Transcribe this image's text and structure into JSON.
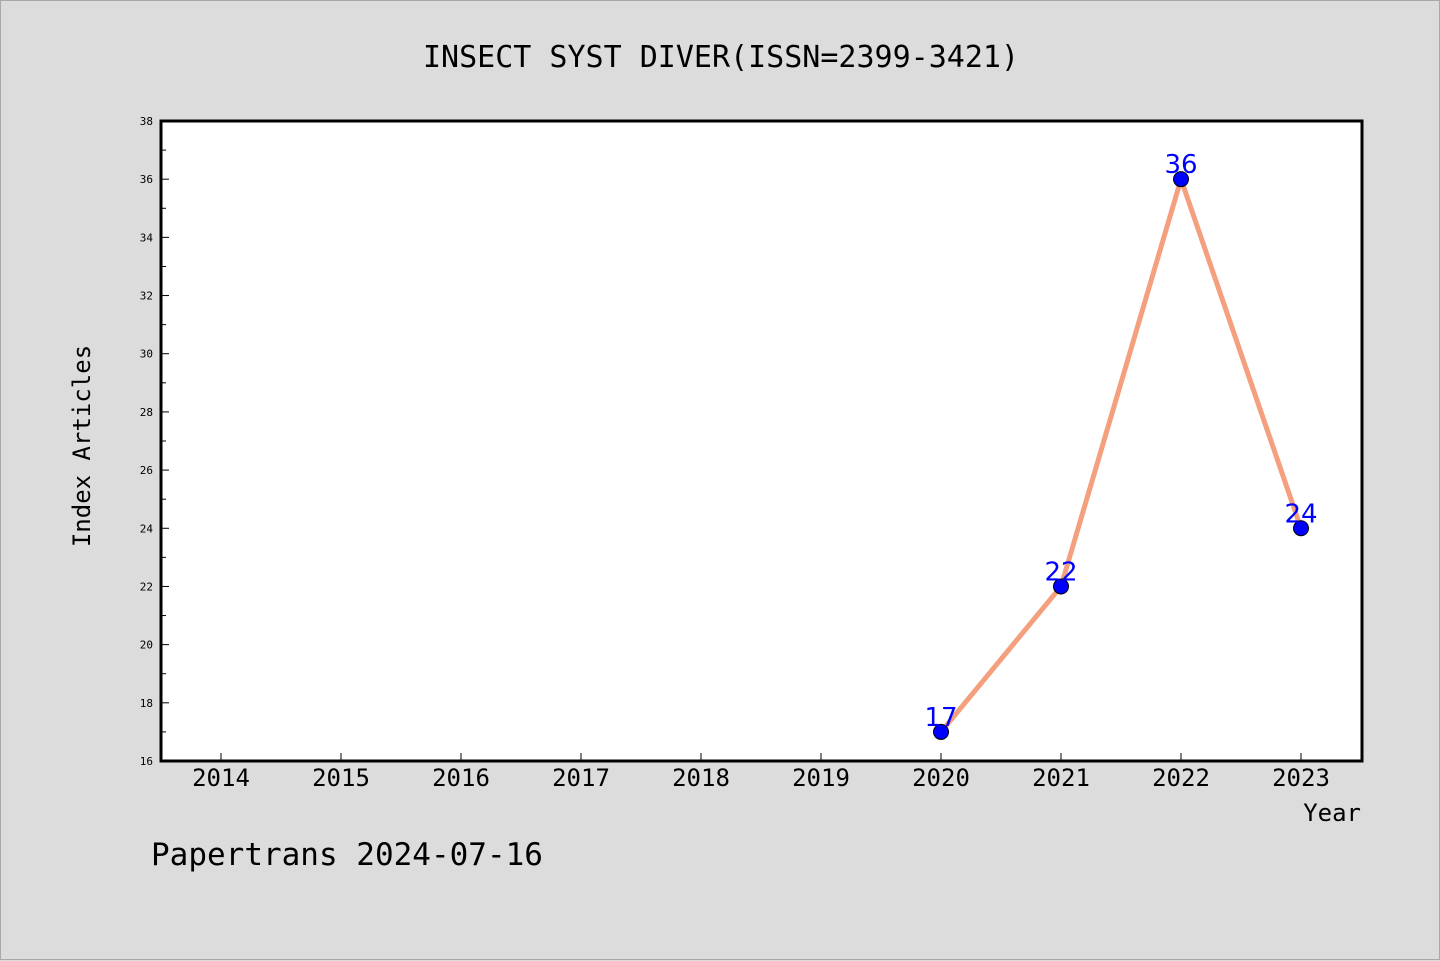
{
  "chart_data": {
    "type": "line",
    "title": "INSECT SYST DIVER(ISSN=2399-3421)",
    "xlabel": "Year",
    "ylabel": "Index Articles",
    "categories": [
      "2014",
      "2015",
      "2016",
      "2017",
      "2018",
      "2019",
      "2020",
      "2021",
      "2022",
      "2023"
    ],
    "points": [
      {
        "x": "2020",
        "y": 17
      },
      {
        "x": "2021",
        "y": 22
      },
      {
        "x": "2022",
        "y": 36
      },
      {
        "x": "2023",
        "y": 24
      }
    ],
    "ylim": [
      16,
      38
    ],
    "yticks": [
      16,
      18,
      20,
      22,
      24,
      26,
      28,
      30,
      32,
      34,
      36,
      38
    ],
    "grid": false,
    "line_color": "#f4a07e",
    "marker_color": "#0000ff",
    "label_color": "#0000ff"
  },
  "footer": {
    "text": "Papertrans 2024-07-16"
  }
}
